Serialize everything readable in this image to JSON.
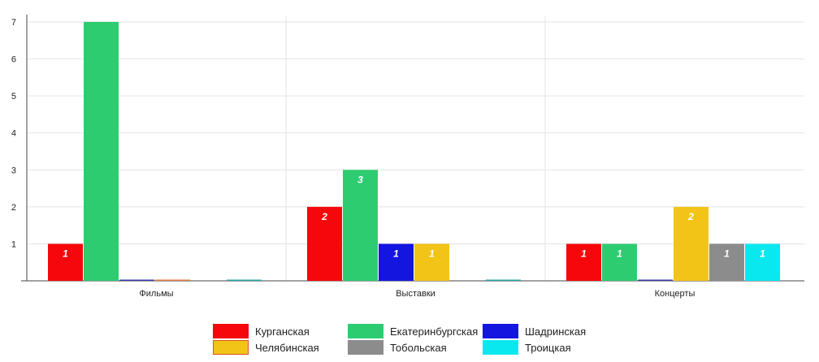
{
  "chart_data": {
    "type": "bar",
    "categories": [
      "Фильмы",
      "Выставки",
      "Концерты"
    ],
    "ylim": [
      0,
      7
    ],
    "yticks": [
      1,
      2,
      3,
      4,
      5,
      6,
      7
    ],
    "grid": true,
    "legend_position": "bottom",
    "series": [
      {
        "name": "Курганская",
        "color": "#f5070b",
        "values": [
          1,
          2,
          1
        ]
      },
      {
        "name": "Екатеринбургская",
        "color": "#2ecc71",
        "values": [
          7,
          3,
          1
        ]
      },
      {
        "name": "Шадринская",
        "color": "#1515e0",
        "values": [
          0,
          1,
          0
        ]
      },
      {
        "name": "Челябинская",
        "color": "#f2c417",
        "values": [
          0,
          1,
          2
        ]
      },
      {
        "name": "Тобольская",
        "color": "#8c8c8c",
        "values": [
          0,
          0,
          1
        ]
      },
      {
        "name": "Троицкая",
        "color": "#0ae8ef",
        "values": [
          0,
          0,
          1
        ]
      }
    ],
    "bar_labels": [
      [
        "1",
        "",
        "",
        "",
        "",
        ""
      ],
      [
        "2",
        "3",
        "1",
        "1",
        "",
        ""
      ],
      [
        "1",
        "1",
        "",
        "2",
        "1",
        "1"
      ]
    ],
    "zero_stub_colors": [
      "#3b3bb0",
      "#e07a3a",
      "#2aa6a6"
    ]
  }
}
